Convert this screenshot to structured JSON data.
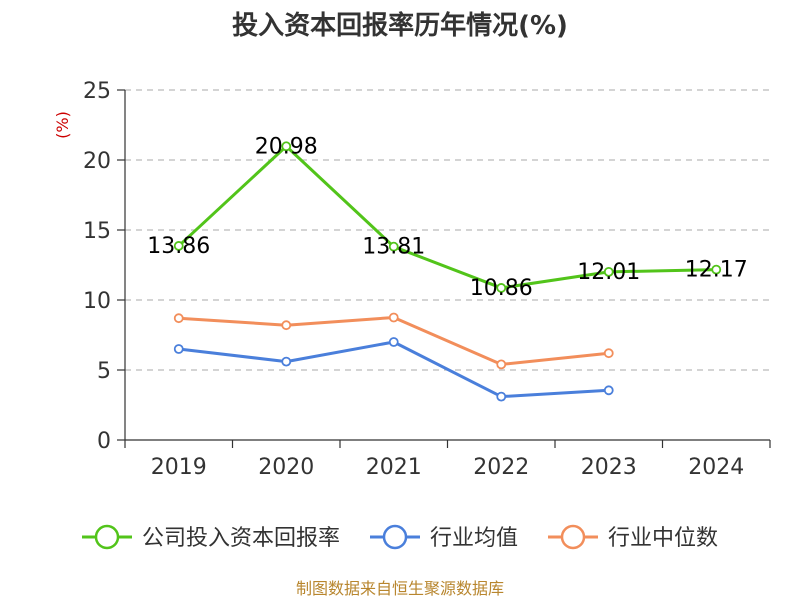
{
  "chart_data": {
    "type": "line",
    "title": "投入资本回报率历年情况(%)",
    "ylabel": "(%)",
    "xlabel": "",
    "categories": [
      "2019",
      "2020",
      "2021",
      "2022",
      "2023",
      "2024"
    ],
    "yticks": [
      0,
      5,
      10,
      15,
      20,
      25
    ],
    "ylim": [
      0,
      25
    ],
    "grid": true,
    "legend_position": "bottom",
    "series": [
      {
        "name": "公司投入资本回报率",
        "color": "#52c41a",
        "values": [
          13.86,
          20.98,
          13.81,
          10.86,
          12.01,
          12.17
        ],
        "labels": [
          "13.86",
          "20.98",
          "13.81",
          "10.86",
          "12.01",
          "12.17"
        ],
        "show_labels": true
      },
      {
        "name": "行业均值",
        "color": "#4a7fdb",
        "values": [
          6.5,
          5.6,
          7.0,
          3.1,
          3.55,
          null
        ],
        "show_labels": false
      },
      {
        "name": "行业中位数",
        "color": "#f28e5b",
        "values": [
          8.7,
          8.2,
          8.75,
          5.4,
          6.2,
          null
        ],
        "show_labels": false
      }
    ]
  },
  "footer": {
    "source": "制图数据来自恒生聚源数据库"
  }
}
